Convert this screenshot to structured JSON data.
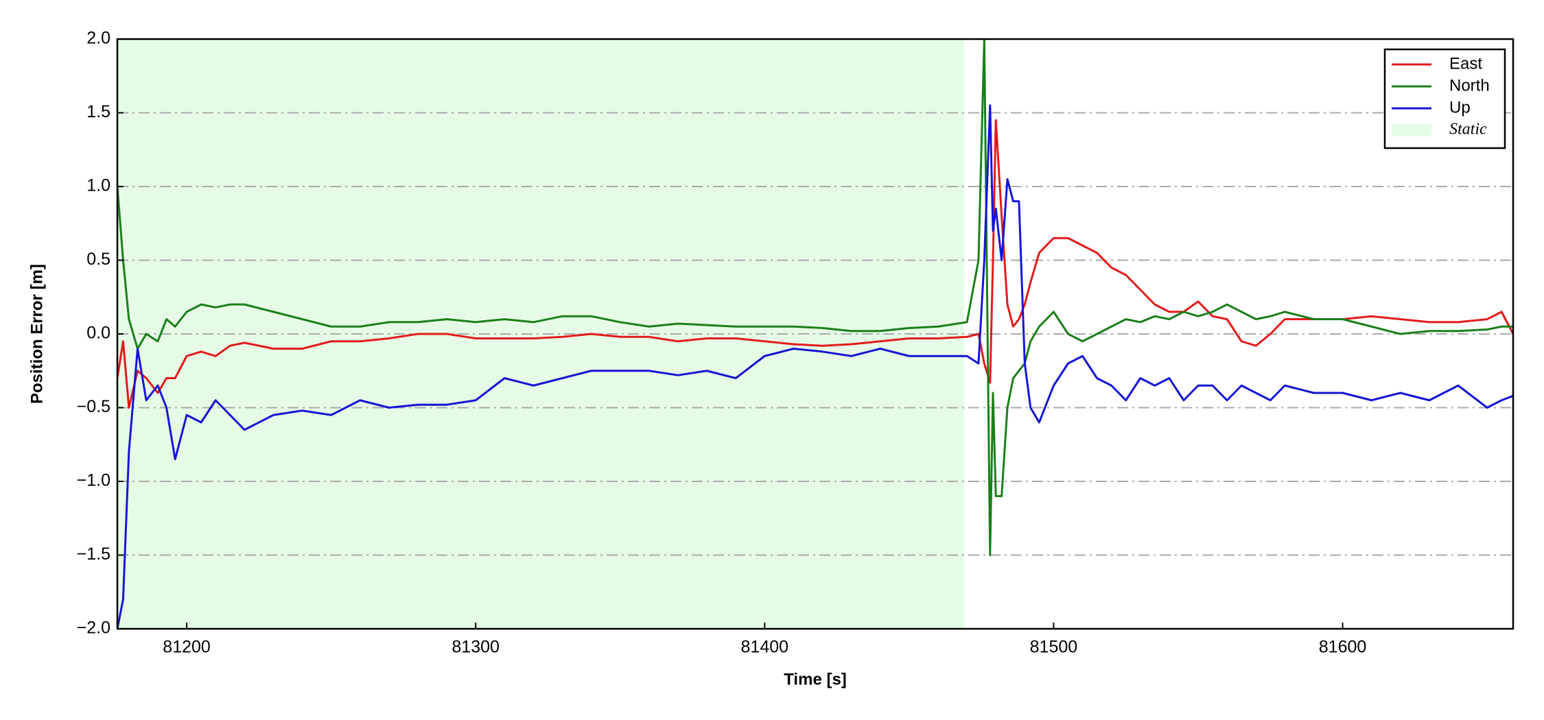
{
  "chart_data": {
    "type": "line",
    "x_label": "Time [s]",
    "y_label": "Position Error [m]",
    "x": [
      81176,
      81178,
      81180,
      81183,
      81186,
      81190,
      81193,
      81196,
      81200,
      81205,
      81210,
      81215,
      81220,
      81230,
      81240,
      81250,
      81260,
      81270,
      81280,
      81290,
      81300,
      81310,
      81320,
      81330,
      81340,
      81350,
      81360,
      81370,
      81380,
      81390,
      81400,
      81410,
      81420,
      81430,
      81440,
      81450,
      81460,
      81470,
      81474,
      81476,
      81478,
      81479,
      81480,
      81482,
      81484,
      81486,
      81488,
      81490,
      81492,
      81495,
      81500,
      81505,
      81510,
      81515,
      81520,
      81525,
      81530,
      81535,
      81540,
      81545,
      81550,
      81555,
      81560,
      81565,
      81570,
      81575,
      81580,
      81590,
      81600,
      81610,
      81620,
      81630,
      81640,
      81650,
      81655,
      81659
    ],
    "series": [
      {
        "name": "East",
        "color": "#e31a1c",
        "values": [
          -0.3,
          -0.05,
          -0.5,
          -0.25,
          -0.3,
          -0.4,
          -0.3,
          -0.3,
          -0.15,
          -0.12,
          -0.15,
          -0.08,
          -0.06,
          -0.1,
          -0.1,
          -0.05,
          -0.05,
          -0.03,
          0,
          0,
          -0.03,
          -0.03,
          -0.03,
          -0.02,
          0,
          -0.02,
          -0.02,
          -0.05,
          -0.03,
          -0.03,
          -0.05,
          -0.07,
          -0.08,
          -0.07,
          -0.05,
          -0.03,
          -0.03,
          -0.02,
          0,
          -0.2,
          -0.33,
          0.5,
          1.45,
          0.8,
          0.2,
          0.05,
          0.1,
          0.2,
          0.35,
          0.55,
          0.65,
          0.65,
          0.6,
          0.55,
          0.45,
          0.4,
          0.3,
          0.2,
          0.15,
          0.15,
          0.22,
          0.12,
          0.1,
          -0.05,
          -0.08,
          0,
          0.1,
          0.1,
          0.1,
          0.12,
          0.1,
          0.08,
          0.08,
          0.1,
          0.15,
          0
        ]
      },
      {
        "name": "North",
        "color": "#1a7f1a",
        "values": [
          1.0,
          0.5,
          0.1,
          -0.1,
          0,
          -0.05,
          0.1,
          0.05,
          0.15,
          0.2,
          0.18,
          0.2,
          0.2,
          0.15,
          0.1,
          0.05,
          0.05,
          0.08,
          0.08,
          0.1,
          0.08,
          0.1,
          0.08,
          0.12,
          0.12,
          0.08,
          0.05,
          0.07,
          0.06,
          0.05,
          0.05,
          0.05,
          0.04,
          0.02,
          0.02,
          0.04,
          0.05,
          0.08,
          0.5,
          2.0,
          -1.5,
          -0.4,
          -1.1,
          -1.1,
          -0.5,
          -0.3,
          -0.25,
          -0.2,
          -0.05,
          0.05,
          0.15,
          0,
          -0.05,
          0,
          0.05,
          0.1,
          0.08,
          0.12,
          0.1,
          0.15,
          0.12,
          0.15,
          0.2,
          0.15,
          0.1,
          0.12,
          0.15,
          0.1,
          0.1,
          0.05,
          0,
          0.02,
          0.02,
          0.03,
          0.05,
          0.05
        ]
      },
      {
        "name": "Up",
        "color": "#1515d6",
        "values": [
          -2.0,
          -1.8,
          -0.8,
          -0.1,
          -0.45,
          -0.35,
          -0.5,
          -0.85,
          -0.55,
          -0.6,
          -0.45,
          -0.55,
          -0.65,
          -0.55,
          -0.52,
          -0.55,
          -0.45,
          -0.5,
          -0.48,
          -0.48,
          -0.45,
          -0.3,
          -0.35,
          -0.3,
          -0.25,
          -0.25,
          -0.25,
          -0.28,
          -0.25,
          -0.3,
          -0.15,
          -0.1,
          -0.12,
          -0.15,
          -0.1,
          -0.15,
          -0.15,
          -0.15,
          -0.2,
          0.5,
          1.55,
          0.7,
          0.85,
          0.5,
          1.05,
          0.9,
          0.9,
          -0.2,
          -0.5,
          -0.6,
          -0.35,
          -0.2,
          -0.15,
          -0.3,
          -0.35,
          -0.45,
          -0.3,
          -0.35,
          -0.3,
          -0.45,
          -0.35,
          -0.35,
          -0.45,
          -0.35,
          -0.4,
          -0.45,
          -0.35,
          -0.4,
          -0.4,
          -0.45,
          -0.4,
          -0.45,
          -0.35,
          -0.5,
          -0.45,
          -0.42
        ]
      }
    ],
    "shaded_region": {
      "name": "Static",
      "range": [
        81176,
        81469
      ],
      "color": "#e6fbe6"
    },
    "xlim": [
      81176,
      81659
    ],
    "xticks": [
      81200,
      81300,
      81400,
      81500,
      81600
    ],
    "ylim": [
      -2,
      2
    ],
    "yticks": [
      {
        "value": -2,
        "label": "−2.0"
      },
      {
        "value": -1.5,
        "label": "−1.5"
      },
      {
        "value": -1,
        "label": "−1.0"
      },
      {
        "value": -0.5,
        "label": "−0.5"
      },
      {
        "value": 0,
        "label": "0.0"
      },
      {
        "value": 0.5,
        "label": "0.5"
      },
      {
        "value": 1,
        "label": "1.0"
      },
      {
        "value": 1.5,
        "label": "1.5"
      },
      {
        "value": 2,
        "label": "2.0"
      }
    ],
    "grid": true,
    "legend": "upper right"
  }
}
